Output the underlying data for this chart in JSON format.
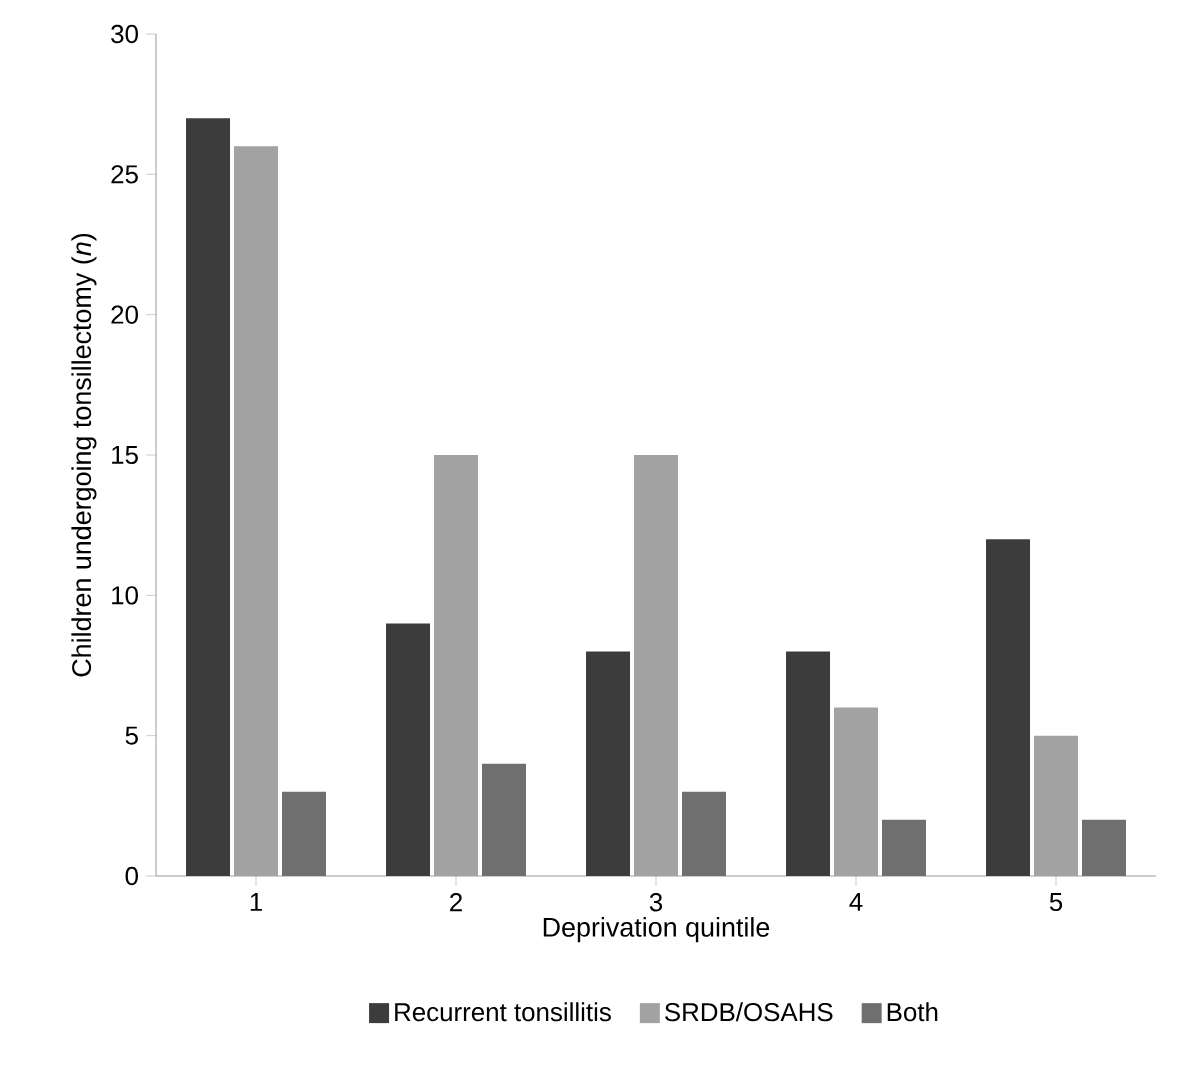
{
  "chart_data": {
    "type": "bar",
    "xlabel": "Deprivation quintile",
    "ylabel": "Children undergoing tonsillectomy (*n*)",
    "categories": [
      "1",
      "2",
      "3",
      "4",
      "5"
    ],
    "series": [
      {
        "name": "Recurrent tonsillitis",
        "color": "#3c3c3c",
        "values": [
          27,
          9,
          8,
          8,
          12
        ]
      },
      {
        "name": "SRDB/OSAHS",
        "color": "#a2a2a2",
        "values": [
          26,
          15,
          15,
          6,
          5
        ]
      },
      {
        "name": "Both",
        "color": "#6f6f6f",
        "values": [
          3,
          4,
          3,
          2,
          2
        ]
      }
    ],
    "ylim": [
      0,
      30
    ],
    "yticks": [
      0,
      5,
      10,
      15,
      20,
      25,
      30
    ],
    "legend": "bottom"
  }
}
